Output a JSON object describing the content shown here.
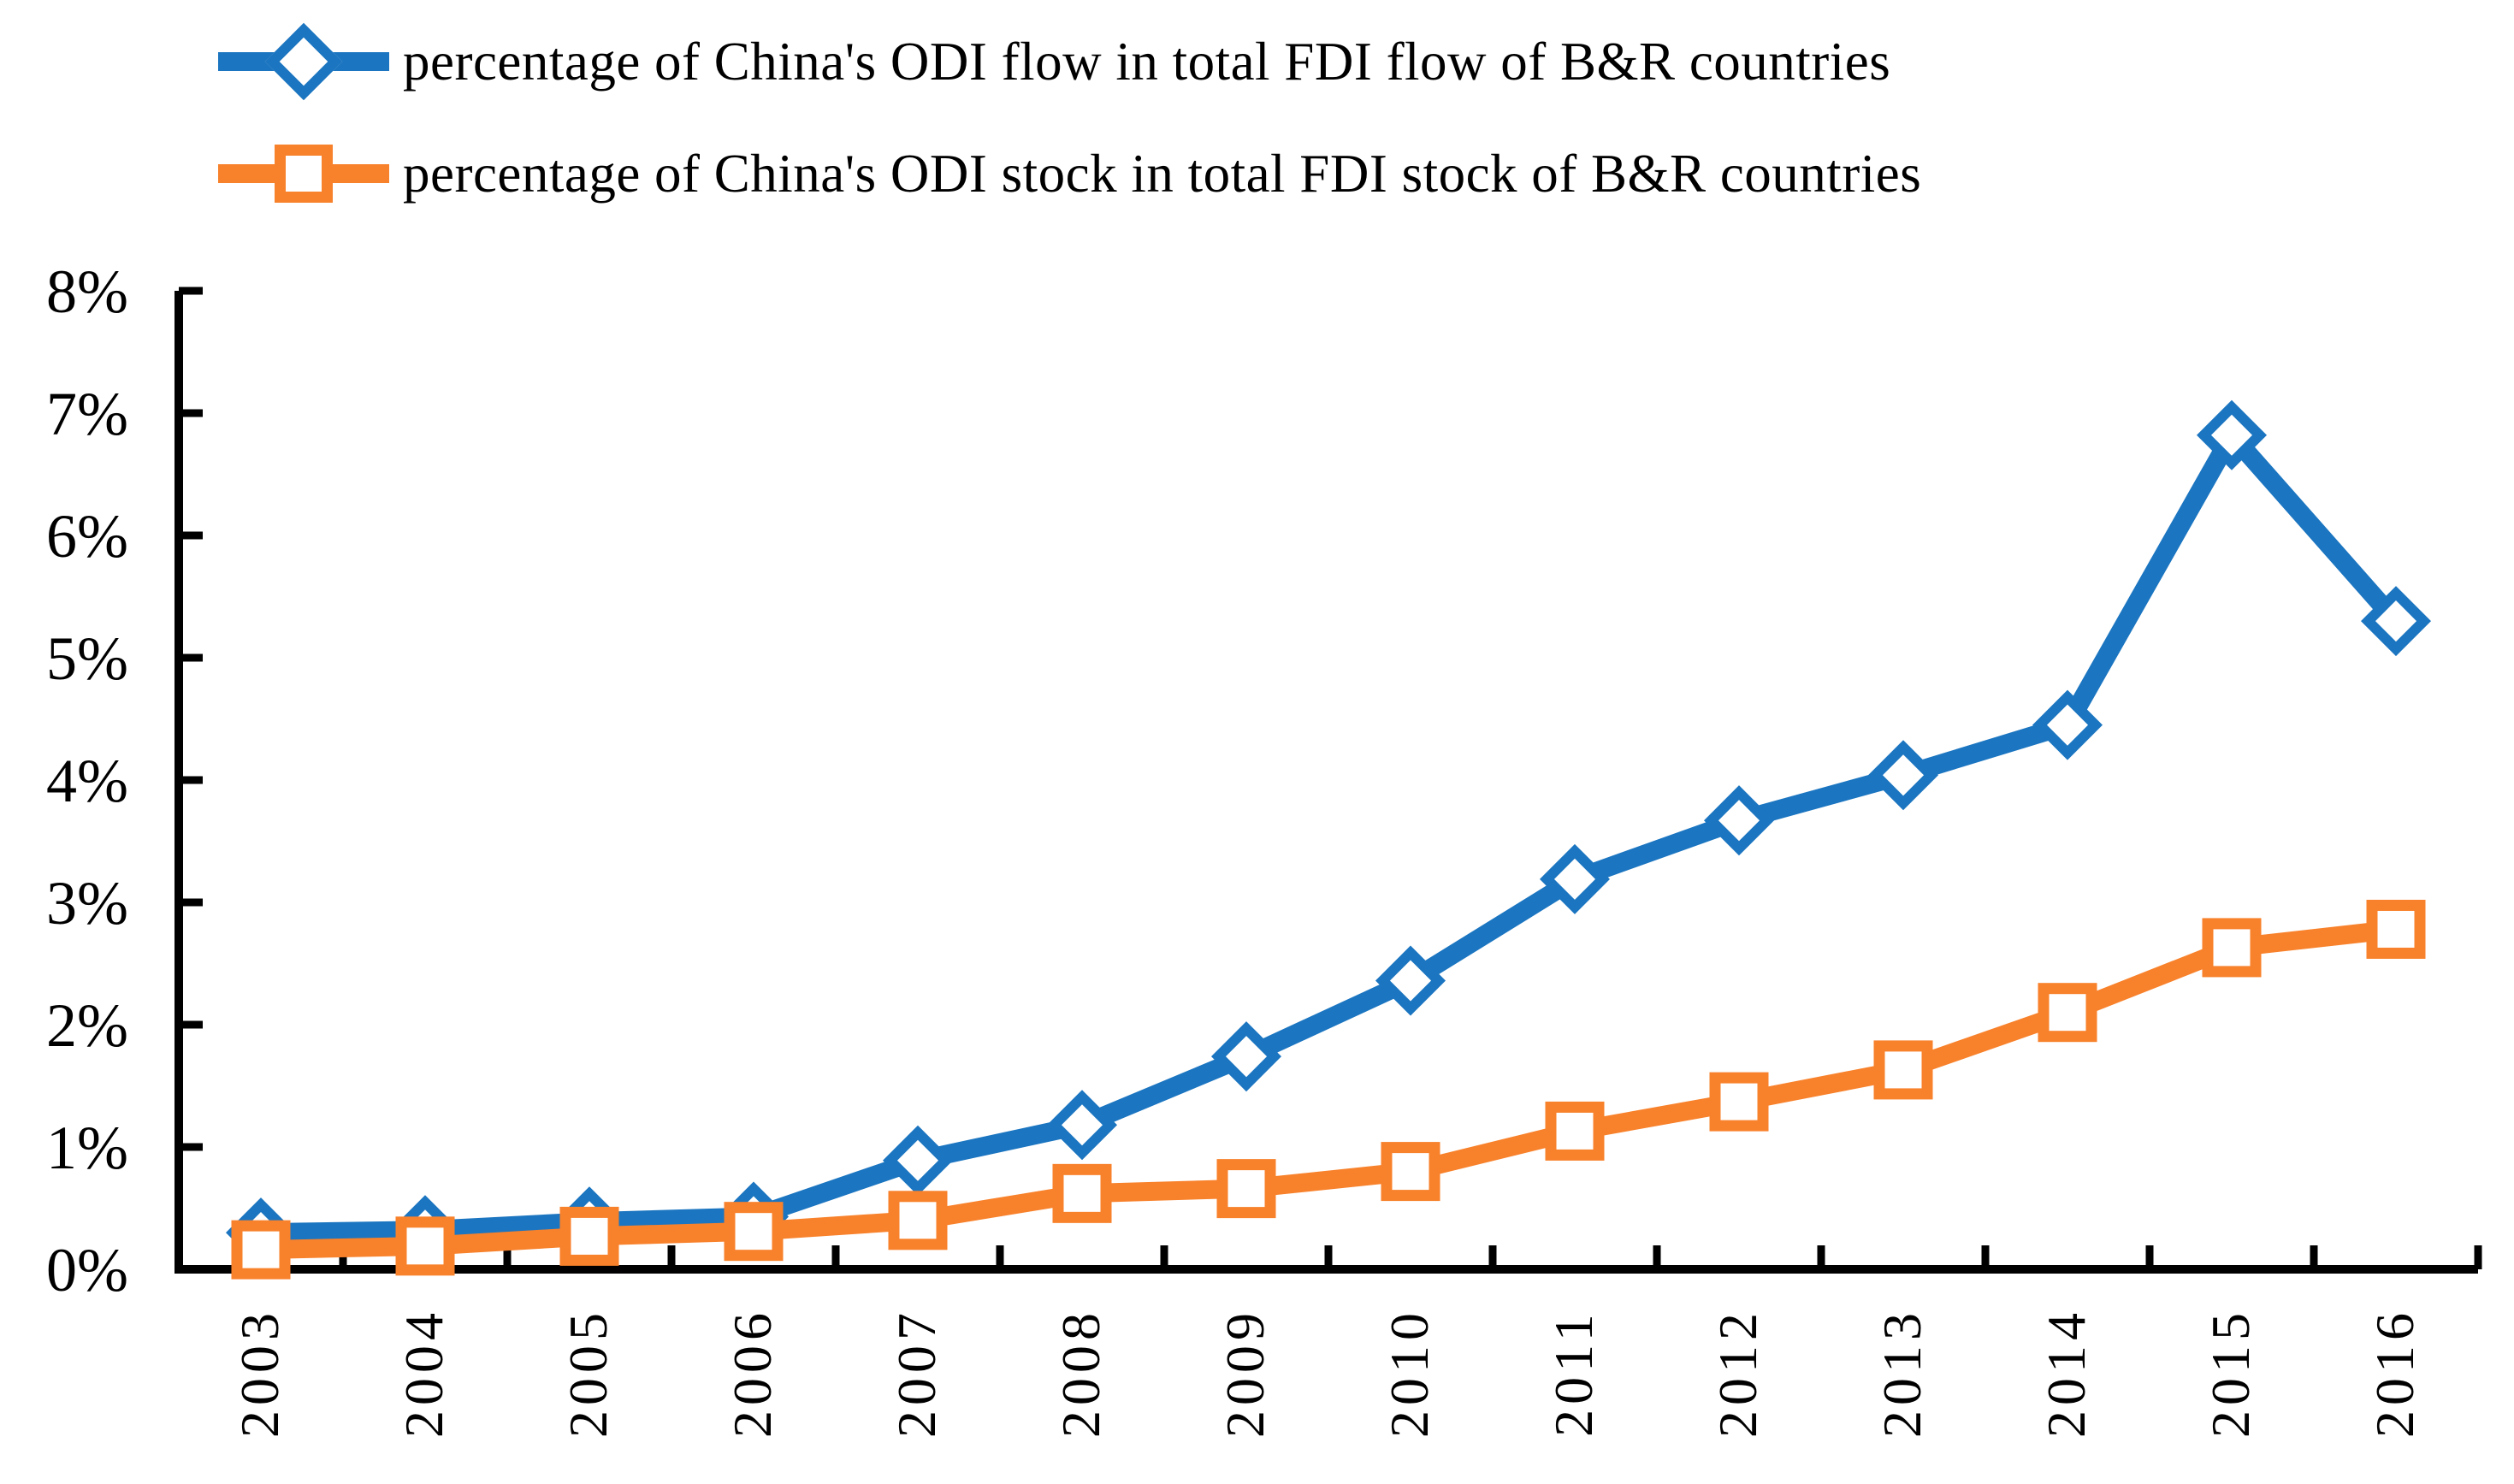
{
  "title": "",
  "background_color": "#ffffff",
  "axis_color": "#000000",
  "text_color": "#000000",
  "legend": {
    "position": "top-left",
    "items": [
      {
        "label": "percentage of China's ODI flow in total FDI flow of B&R countries",
        "marker": "diamond",
        "color": "#1B75C0"
      },
      {
        "label": "percentage of China's ODI stock in total FDI stock of B&R countries",
        "marker": "square",
        "color": "#F8812B"
      }
    ]
  },
  "chart_data": {
    "type": "line",
    "title": "",
    "xlabel": "",
    "ylabel": "",
    "x": [
      "2003",
      "2004",
      "2005",
      "2006",
      "2007",
      "2008",
      "2009",
      "2010",
      "2011",
      "2012",
      "2013",
      "2014",
      "2015",
      "2016"
    ],
    "series": [
      {
        "name": "percentage of China's ODI flow in total FDI flow of B&R countries",
        "color": "#1B75C0",
        "marker": "diamond",
        "values": [
          0.3,
          0.32,
          0.39,
          0.43,
          0.89,
          1.18,
          1.74,
          2.36,
          3.19,
          3.67,
          4.04,
          4.45,
          6.82,
          5.3
        ]
      },
      {
        "name": "percentage of China's ODI stock in total FDI stock of B&R countries",
        "color": "#F8812B",
        "marker": "square",
        "values": [
          0.16,
          0.19,
          0.27,
          0.31,
          0.4,
          0.62,
          0.66,
          0.8,
          1.13,
          1.37,
          1.63,
          2.1,
          2.63,
          2.78
        ]
      }
    ],
    "ylim": [
      0,
      8
    ],
    "ytick_labels": [
      "0%",
      "1%",
      "2%",
      "3%",
      "4%",
      "5%",
      "6%",
      "7%",
      "8%"
    ],
    "xtick_labels": [
      "2003",
      "2004",
      "2005",
      "2006",
      "2007",
      "2008",
      "2009",
      "2010",
      "2011",
      "2012",
      "2013",
      "2014",
      "2015",
      "2016"
    ],
    "grid": false,
    "legend_position": "top-left"
  }
}
